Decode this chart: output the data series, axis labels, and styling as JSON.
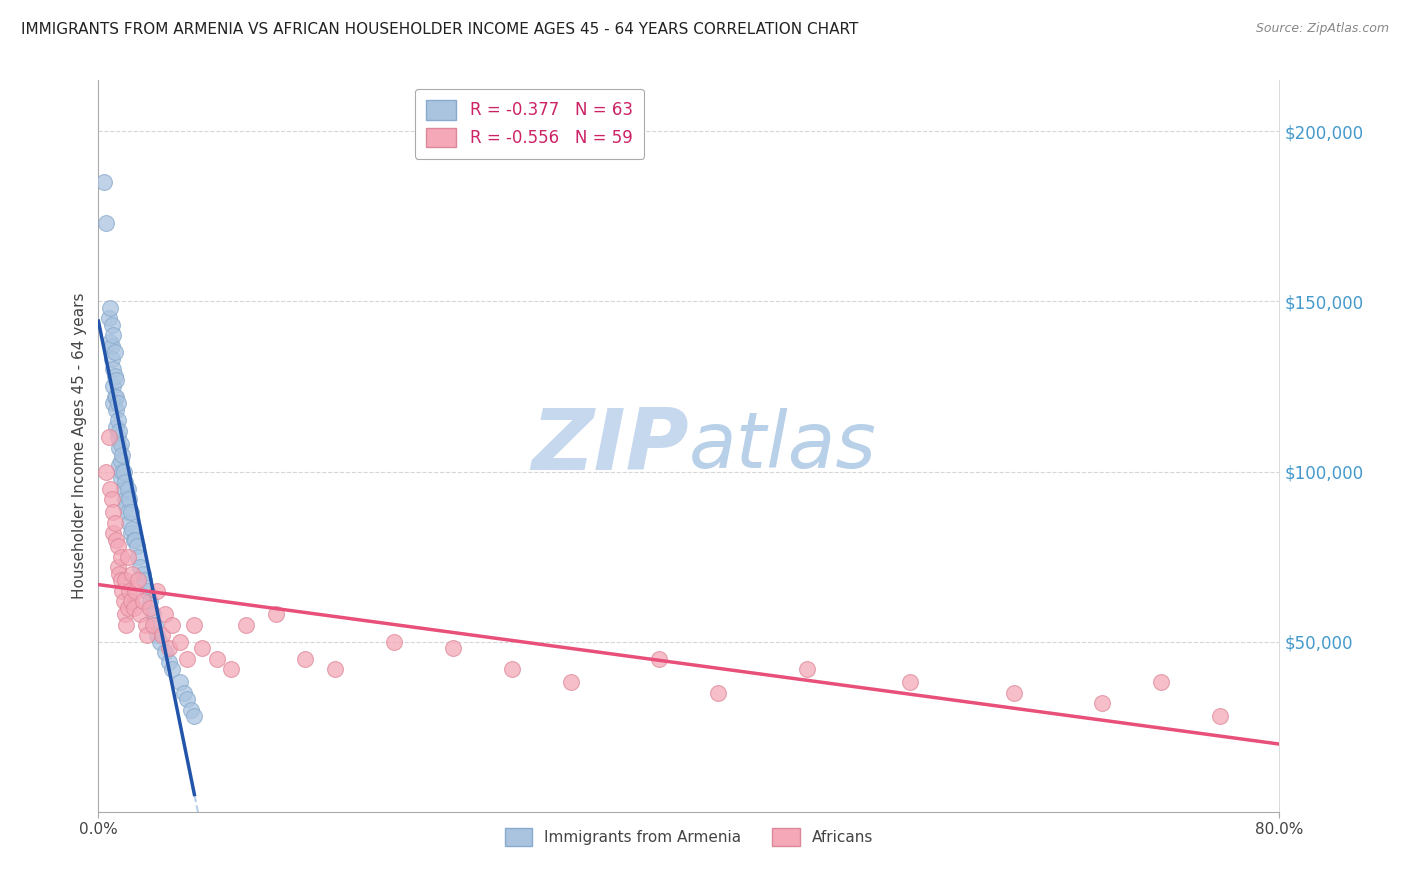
{
  "title": "IMMIGRANTS FROM ARMENIA VS AFRICAN HOUSEHOLDER INCOME AGES 45 - 64 YEARS CORRELATION CHART",
  "source": "Source: ZipAtlas.com",
  "ylabel": "Householder Income Ages 45 - 64 years",
  "ytick_labels": [
    "$50,000",
    "$100,000",
    "$150,000",
    "$200,000"
  ],
  "ytick_values": [
    50000,
    100000,
    150000,
    200000
  ],
  "ylim": [
    0,
    215000
  ],
  "xlim": [
    0.0,
    0.8
  ],
  "legend1_text": "R = -0.377   N = 63",
  "legend2_text": "R = -0.556   N = 59",
  "legend_label1": "Immigrants from Armenia",
  "legend_label2": "Africans",
  "blue_scatter_color": "#aac4e0",
  "pink_scatter_color": "#f4a8b8",
  "blue_line_color": "#2255aa",
  "pink_line_color": "#e8507a",
  "blue_dash_color": "#99bbdd",
  "background_color": "#ffffff",
  "grid_color": "#cccccc",
  "tick_color": "#4499cc",
  "armenia_x": [
    0.004,
    0.005,
    0.007,
    0.008,
    0.008,
    0.009,
    0.009,
    0.009,
    0.01,
    0.01,
    0.01,
    0.01,
    0.011,
    0.011,
    0.011,
    0.012,
    0.012,
    0.012,
    0.012,
    0.013,
    0.013,
    0.013,
    0.014,
    0.014,
    0.014,
    0.015,
    0.015,
    0.015,
    0.016,
    0.016,
    0.017,
    0.017,
    0.018,
    0.018,
    0.019,
    0.02,
    0.02,
    0.021,
    0.021,
    0.022,
    0.022,
    0.023,
    0.024,
    0.025,
    0.026,
    0.027,
    0.028,
    0.03,
    0.031,
    0.033,
    0.035,
    0.037,
    0.038,
    0.04,
    0.042,
    0.045,
    0.048,
    0.05,
    0.055,
    0.058,
    0.06,
    0.063,
    0.065
  ],
  "armenia_y": [
    185000,
    173000,
    145000,
    148000,
    138000,
    143000,
    137000,
    133000,
    140000,
    130000,
    125000,
    120000,
    135000,
    128000,
    122000,
    127000,
    122000,
    118000,
    113000,
    120000,
    115000,
    110000,
    112000,
    107000,
    102000,
    108000,
    103000,
    98000,
    105000,
    100000,
    100000,
    95000,
    97000,
    92000,
    90000,
    95000,
    88000,
    92000,
    85000,
    88000,
    82000,
    83000,
    80000,
    80000,
    78000,
    75000,
    72000,
    70000,
    68000,
    65000,
    62000,
    58000,
    55000,
    52000,
    50000,
    47000,
    44000,
    42000,
    38000,
    35000,
    33000,
    30000,
    28000
  ],
  "africa_x": [
    0.005,
    0.007,
    0.008,
    0.009,
    0.01,
    0.01,
    0.011,
    0.012,
    0.013,
    0.013,
    0.014,
    0.015,
    0.015,
    0.016,
    0.017,
    0.018,
    0.018,
    0.019,
    0.02,
    0.02,
    0.021,
    0.022,
    0.023,
    0.024,
    0.025,
    0.027,
    0.028,
    0.03,
    0.032,
    0.033,
    0.035,
    0.037,
    0.04,
    0.043,
    0.045,
    0.048,
    0.05,
    0.055,
    0.06,
    0.065,
    0.07,
    0.08,
    0.09,
    0.1,
    0.12,
    0.14,
    0.16,
    0.2,
    0.24,
    0.28,
    0.32,
    0.38,
    0.42,
    0.48,
    0.55,
    0.62,
    0.68,
    0.72,
    0.76
  ],
  "africa_y": [
    100000,
    110000,
    95000,
    92000,
    88000,
    82000,
    85000,
    80000,
    78000,
    72000,
    70000,
    68000,
    75000,
    65000,
    62000,
    68000,
    58000,
    55000,
    60000,
    75000,
    65000,
    62000,
    70000,
    60000,
    65000,
    68000,
    58000,
    62000,
    55000,
    52000,
    60000,
    55000,
    65000,
    52000,
    58000,
    48000,
    55000,
    50000,
    45000,
    55000,
    48000,
    45000,
    42000,
    55000,
    58000,
    45000,
    42000,
    50000,
    48000,
    42000,
    38000,
    45000,
    35000,
    42000,
    38000,
    35000,
    32000,
    38000,
    28000
  ]
}
